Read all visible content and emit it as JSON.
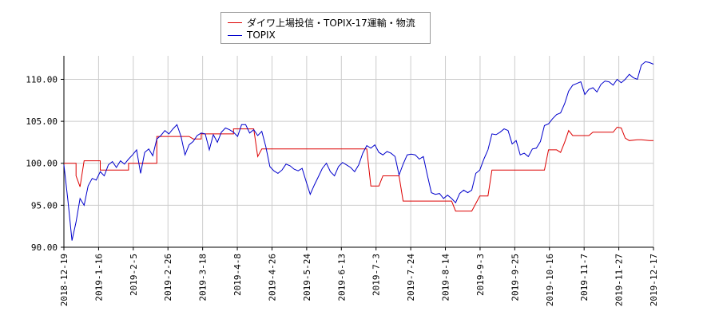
{
  "chart_data": {
    "type": "line",
    "ylim": [
      90,
      112.8
    ],
    "y_ticks": [
      "90.00",
      "95.00",
      "100.00",
      "105.00",
      "110.00"
    ],
    "y_tick_values": [
      90,
      95,
      100,
      105,
      110
    ],
    "x_ticks": [
      "2018-12-19",
      "2019-1-16",
      "2019-2-5",
      "2019-2-26",
      "2019-3-18",
      "2019-4-8",
      "2019-4-26",
      "2019-5-24",
      "2019-6-13",
      "2019-7-3",
      "2019-7-24",
      "2019-8-14",
      "2019-9-3",
      "2019-9-25",
      "2019-10-16",
      "2019-11-7",
      "2019-11-27",
      "2019-12-17"
    ],
    "grid": true,
    "legend_position": "top-center",
    "colors": {
      "series1": "#dd0000",
      "series2": "#0000cc",
      "grid": "#cccccc"
    },
    "series": [
      {
        "name": "ダイワ上場投信・TOPIX-17運輸・物流",
        "color": "#dd0000",
        "points": [
          [
            0,
            100.0
          ],
          [
            3,
            100.0
          ],
          [
            3,
            98.5
          ],
          [
            4,
            97.2
          ],
          [
            5,
            100.3
          ],
          [
            9,
            100.3
          ],
          [
            9,
            99.2
          ],
          [
            16,
            99.2
          ],
          [
            16,
            100.0
          ],
          [
            23,
            100.0
          ],
          [
            23,
            103.2
          ],
          [
            31,
            103.2
          ],
          [
            32,
            102.9
          ],
          [
            34,
            102.9
          ],
          [
            34,
            103.5
          ],
          [
            42,
            103.5
          ],
          [
            42,
            104.1
          ],
          [
            47,
            104.1
          ],
          [
            48,
            100.8
          ],
          [
            49,
            101.7
          ],
          [
            75,
            101.7
          ],
          [
            76,
            97.3
          ],
          [
            78,
            97.3
          ],
          [
            79,
            98.5
          ],
          [
            83,
            98.5
          ],
          [
            84,
            95.5
          ],
          [
            96,
            95.5
          ],
          [
            97,
            94.3
          ],
          [
            101,
            94.3
          ],
          [
            103,
            96.1
          ],
          [
            105,
            96.1
          ],
          [
            106,
            99.2
          ],
          [
            119,
            99.2
          ],
          [
            120,
            101.6
          ],
          [
            122,
            101.6
          ],
          [
            123,
            101.3
          ],
          [
            124,
            102.5
          ],
          [
            125,
            103.9
          ],
          [
            126,
            103.3
          ],
          [
            130,
            103.3
          ],
          [
            131,
            103.7
          ],
          [
            136,
            103.7
          ],
          [
            137,
            104.3
          ],
          [
            138,
            104.2
          ],
          [
            139,
            103.0
          ],
          [
            140,
            102.7
          ],
          [
            142,
            102.8
          ],
          [
            143,
            102.8
          ],
          [
            145,
            102.7
          ],
          [
            146,
            102.7
          ]
        ]
      },
      {
        "name": "TOPIX",
        "color": "#0000cc",
        "points": [
          [
            0,
            99.8
          ],
          [
            1,
            95.5
          ],
          [
            2,
            90.8
          ],
          [
            3,
            93.0
          ],
          [
            4,
            95.8
          ],
          [
            5,
            95.0
          ],
          [
            6,
            97.3
          ],
          [
            7,
            98.2
          ],
          [
            8,
            98.0
          ],
          [
            9,
            99.0
          ],
          [
            10,
            98.5
          ],
          [
            11,
            99.8
          ],
          [
            12,
            100.2
          ],
          [
            13,
            99.5
          ],
          [
            14,
            100.3
          ],
          [
            15,
            99.9
          ],
          [
            16,
            100.5
          ],
          [
            17,
            101.0
          ],
          [
            18,
            101.6
          ],
          [
            19,
            98.8
          ],
          [
            20,
            101.3
          ],
          [
            21,
            101.7
          ],
          [
            22,
            100.9
          ],
          [
            23,
            102.9
          ],
          [
            24,
            103.3
          ],
          [
            25,
            103.9
          ],
          [
            26,
            103.5
          ],
          [
            27,
            104.1
          ],
          [
            28,
            104.6
          ],
          [
            29,
            103.2
          ],
          [
            30,
            101.0
          ],
          [
            31,
            102.2
          ],
          [
            32,
            102.6
          ],
          [
            33,
            103.3
          ],
          [
            34,
            103.6
          ],
          [
            35,
            103.5
          ],
          [
            36,
            101.6
          ],
          [
            37,
            103.4
          ],
          [
            38,
            102.5
          ],
          [
            39,
            103.7
          ],
          [
            40,
            104.2
          ],
          [
            41,
            104.0
          ],
          [
            42,
            103.7
          ],
          [
            43,
            103.2
          ],
          [
            44,
            104.6
          ],
          [
            45,
            104.6
          ],
          [
            46,
            103.6
          ],
          [
            47,
            104.0
          ],
          [
            48,
            103.3
          ],
          [
            49,
            103.8
          ],
          [
            50,
            102.0
          ],
          [
            51,
            99.6
          ],
          [
            52,
            99.1
          ],
          [
            53,
            98.8
          ],
          [
            54,
            99.2
          ],
          [
            55,
            99.9
          ],
          [
            56,
            99.7
          ],
          [
            57,
            99.3
          ],
          [
            58,
            99.1
          ],
          [
            59,
            99.4
          ],
          [
            60,
            97.8
          ],
          [
            61,
            96.3
          ],
          [
            62,
            97.4
          ],
          [
            63,
            98.4
          ],
          [
            64,
            99.4
          ],
          [
            65,
            100.0
          ],
          [
            66,
            99.0
          ],
          [
            67,
            98.5
          ],
          [
            68,
            99.6
          ],
          [
            69,
            100.1
          ],
          [
            70,
            99.8
          ],
          [
            71,
            99.5
          ],
          [
            72,
            99.0
          ],
          [
            73,
            99.8
          ],
          [
            74,
            101.2
          ],
          [
            75,
            102.1
          ],
          [
            76,
            101.8
          ],
          [
            77,
            102.2
          ],
          [
            78,
            101.3
          ],
          [
            79,
            101.0
          ],
          [
            80,
            101.4
          ],
          [
            81,
            101.2
          ],
          [
            82,
            100.8
          ],
          [
            83,
            98.6
          ],
          [
            84,
            99.9
          ],
          [
            85,
            101.0
          ],
          [
            86,
            101.1
          ],
          [
            87,
            101.0
          ],
          [
            88,
            100.5
          ],
          [
            89,
            100.8
          ],
          [
            90,
            98.6
          ],
          [
            91,
            96.5
          ],
          [
            92,
            96.3
          ],
          [
            93,
            96.4
          ],
          [
            94,
            95.8
          ],
          [
            95,
            96.2
          ],
          [
            96,
            95.8
          ],
          [
            97,
            95.3
          ],
          [
            98,
            96.4
          ],
          [
            99,
            96.8
          ],
          [
            100,
            96.5
          ],
          [
            101,
            96.8
          ],
          [
            102,
            98.8
          ],
          [
            103,
            99.2
          ],
          [
            104,
            100.5
          ],
          [
            105,
            101.6
          ],
          [
            106,
            103.5
          ],
          [
            107,
            103.4
          ],
          [
            108,
            103.7
          ],
          [
            109,
            104.1
          ],
          [
            110,
            103.9
          ],
          [
            111,
            102.3
          ],
          [
            112,
            102.7
          ],
          [
            113,
            101.0
          ],
          [
            114,
            101.2
          ],
          [
            115,
            100.8
          ],
          [
            116,
            101.7
          ],
          [
            117,
            101.8
          ],
          [
            118,
            102.6
          ],
          [
            119,
            104.5
          ],
          [
            120,
            104.7
          ],
          [
            121,
            105.3
          ],
          [
            122,
            105.8
          ],
          [
            123,
            106.0
          ],
          [
            124,
            107.1
          ],
          [
            125,
            108.6
          ],
          [
            126,
            109.3
          ],
          [
            127,
            109.5
          ],
          [
            128,
            109.7
          ],
          [
            129,
            108.2
          ],
          [
            130,
            108.8
          ],
          [
            131,
            109.0
          ],
          [
            132,
            108.5
          ],
          [
            133,
            109.4
          ],
          [
            134,
            109.8
          ],
          [
            135,
            109.7
          ],
          [
            136,
            109.3
          ],
          [
            137,
            110.0
          ],
          [
            138,
            109.6
          ],
          [
            139,
            110.0
          ],
          [
            140,
            110.6
          ],
          [
            141,
            110.2
          ],
          [
            142,
            110.0
          ],
          [
            143,
            111.7
          ],
          [
            144,
            112.1
          ],
          [
            145,
            112.0
          ],
          [
            146,
            111.8
          ]
        ]
      }
    ]
  }
}
